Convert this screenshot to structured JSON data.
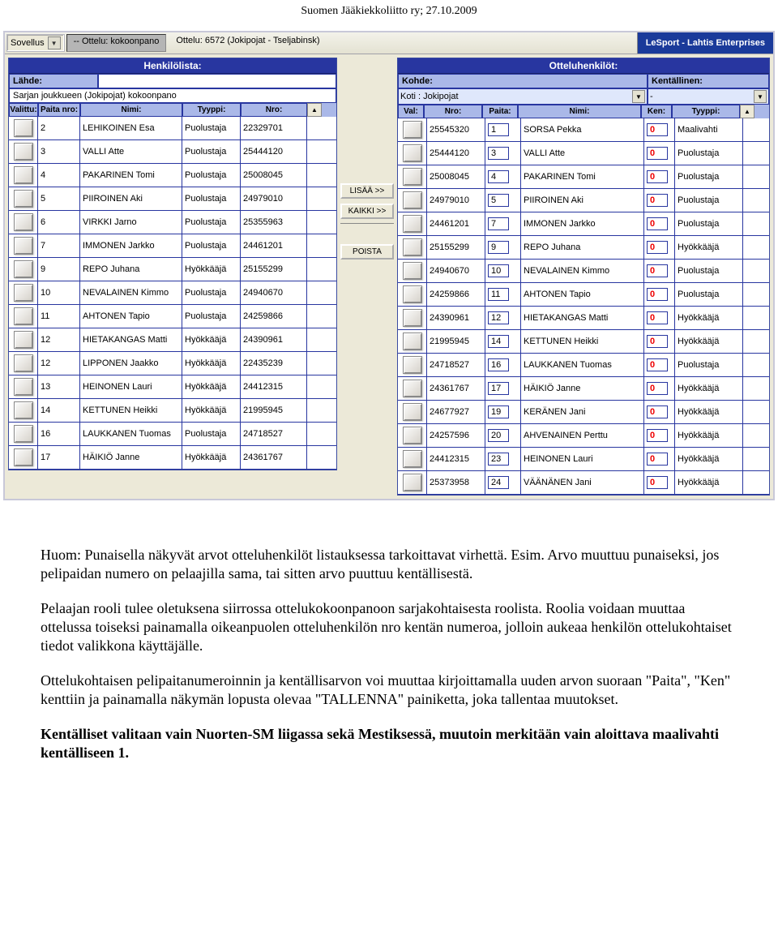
{
  "header": "Suomen Jääkiekkoliitto ry; 27.10.2009",
  "toolbar": {
    "dd_app_label": "Sovellus",
    "tab_label": "-- Ottelu: kokoonpano",
    "match_label": "Ottelu: 6572 (Jokipojat - Tseljabinsk)",
    "brand": "LeSport - Lahtis Enterprises"
  },
  "left_panel": {
    "title": "Henkilölista:",
    "sub_label": "Lähde:",
    "sub_value": "Sarjan joukkueen (Jokipojat) kokoonpano",
    "cols": {
      "val": "Valittu:",
      "paita": "Paita nro:",
      "nimi": "Nimi:",
      "tyyp": "Tyyppi:",
      "nro": "Nro:"
    },
    "rows": [
      {
        "paita": "2",
        "nimi": "LEHIKOINEN Esa",
        "tyyp": "Puolustaja",
        "nro": "22329701"
      },
      {
        "paita": "3",
        "nimi": "VALLI Atte",
        "tyyp": "Puolustaja",
        "nro": "25444120"
      },
      {
        "paita": "4",
        "nimi": "PAKARINEN Tomi",
        "tyyp": "Puolustaja",
        "nro": "25008045"
      },
      {
        "paita": "5",
        "nimi": "PIIROINEN Aki",
        "tyyp": "Puolustaja",
        "nro": "24979010"
      },
      {
        "paita": "6",
        "nimi": "VIRKKI Jarno",
        "tyyp": "Puolustaja",
        "nro": "25355963"
      },
      {
        "paita": "7",
        "nimi": "IMMONEN Jarkko",
        "tyyp": "Puolustaja",
        "nro": "24461201"
      },
      {
        "paita": "9",
        "nimi": "REPO Juhana",
        "tyyp": "Hyökkääjä",
        "nro": "25155299"
      },
      {
        "paita": "10",
        "nimi": "NEVALAINEN Kimmo",
        "tyyp": "Puolustaja",
        "nro": "24940670"
      },
      {
        "paita": "11",
        "nimi": "AHTONEN Tapio",
        "tyyp": "Puolustaja",
        "nro": "24259866"
      },
      {
        "paita": "12",
        "nimi": "HIETAKANGAS Matti",
        "tyyp": "Hyökkääjä",
        "nro": "24390961"
      },
      {
        "paita": "12",
        "nimi": "LIPPONEN Jaakko",
        "tyyp": "Hyökkääjä",
        "nro": "22435239"
      },
      {
        "paita": "13",
        "nimi": "HEINONEN Lauri",
        "tyyp": "Hyökkääjä",
        "nro": "24412315"
      },
      {
        "paita": "14",
        "nimi": "KETTUNEN Heikki",
        "tyyp": "Hyökkääjä",
        "nro": "21995945"
      },
      {
        "paita": "16",
        "nimi": "LAUKKANEN Tuomas",
        "tyyp": "Puolustaja",
        "nro": "24718527"
      },
      {
        "paita": "17",
        "nimi": "HÄIKIÖ Janne",
        "tyyp": "Hyökkääjä",
        "nro": "24361767"
      }
    ]
  },
  "mid": {
    "add": "LISÄÄ >>",
    "all": "KAIKKI >>",
    "remove": "POISTA"
  },
  "right_panel": {
    "title": "Otteluhenkilöt:",
    "kohde_label": "Kohde:",
    "kohde_value": "Koti : Jokipojat",
    "kent_label": "Kentällinen:",
    "kent_value": "-",
    "cols": {
      "val": "Val:",
      "nro": "Nro:",
      "paita": "Paita:",
      "nimi": "Nimi:",
      "ken": "Ken:",
      "tyyp": "Tyyppi:"
    },
    "rows": [
      {
        "nro": "25545320",
        "paita": "1",
        "nimi": "SORSA Pekka",
        "ken": "0",
        "tyyp": "Maalivahti"
      },
      {
        "nro": "25444120",
        "paita": "3",
        "nimi": "VALLI Atte",
        "ken": "0",
        "tyyp": "Puolustaja"
      },
      {
        "nro": "25008045",
        "paita": "4",
        "nimi": "PAKARINEN Tomi",
        "ken": "0",
        "tyyp": "Puolustaja"
      },
      {
        "nro": "24979010",
        "paita": "5",
        "nimi": "PIIROINEN Aki",
        "ken": "0",
        "tyyp": "Puolustaja"
      },
      {
        "nro": "24461201",
        "paita": "7",
        "nimi": "IMMONEN Jarkko",
        "ken": "0",
        "tyyp": "Puolustaja"
      },
      {
        "nro": "25155299",
        "paita": "9",
        "nimi": "REPO Juhana",
        "ken": "0",
        "tyyp": "Hyökkääjä"
      },
      {
        "nro": "24940670",
        "paita": "10",
        "nimi": "NEVALAINEN Kimmo",
        "ken": "0",
        "tyyp": "Puolustaja"
      },
      {
        "nro": "24259866",
        "paita": "11",
        "nimi": "AHTONEN Tapio",
        "ken": "0",
        "tyyp": "Puolustaja"
      },
      {
        "nro": "24390961",
        "paita": "12",
        "nimi": "HIETAKANGAS Matti",
        "ken": "0",
        "tyyp": "Hyökkääjä"
      },
      {
        "nro": "21995945",
        "paita": "14",
        "nimi": "KETTUNEN Heikki",
        "ken": "0",
        "tyyp": "Hyökkääjä"
      },
      {
        "nro": "24718527",
        "paita": "16",
        "nimi": "LAUKKANEN Tuomas",
        "ken": "0",
        "tyyp": "Puolustaja"
      },
      {
        "nro": "24361767",
        "paita": "17",
        "nimi": "HÄIKIÖ Janne",
        "ken": "0",
        "tyyp": "Hyökkääjä"
      },
      {
        "nro": "24677927",
        "paita": "19",
        "nimi": "KERÄNEN Jani",
        "ken": "0",
        "tyyp": "Hyökkääjä"
      },
      {
        "nro": "24257596",
        "paita": "20",
        "nimi": "AHVENAINEN Perttu",
        "ken": "0",
        "tyyp": "Hyökkääjä"
      },
      {
        "nro": "24412315",
        "paita": "23",
        "nimi": "HEINONEN Lauri",
        "ken": "0",
        "tyyp": "Hyökkääjä"
      },
      {
        "nro": "25373958",
        "paita": "24",
        "nimi": "VÄÄNÄNEN Jani",
        "ken": "0",
        "tyyp": "Hyökkääjä"
      }
    ]
  },
  "body": {
    "p1": "Huom: Punaisella näkyvät arvot otteluhenkilöt listauksessa tarkoittavat virhettä. Esim. Arvo muuttuu punaiseksi, jos pelipaidan numero on pelaajilla sama, tai sitten arvo puuttuu kentällisestä.",
    "p2": "Pelaajan rooli tulee oletuksena siirrossa ottelukokoonpanoon sarjakohtaisesta roolista. Roolia voidaan muuttaa ottelussa toiseksi painamalla oikeanpuolen otteluhenkilön nro kentän numeroa, jolloin aukeaa henkilön ottelukohtaiset tiedot valikkona käyttäjälle.",
    "p3": "Ottelukohtaisen pelipaitanumeroinnin ja kentällisarvon voi muuttaa kirjoittamalla uuden arvon suoraan \"Paita\", \"Ken\" kenttiin ja painamalla näkymän lopusta olevaa \"TALLENNA\" painiketta, joka tallentaa muutokset.",
    "p4": "Kentälliset valitaan vain Nuorten-SM liigassa sekä Mestiksessä, muutoin merkitään vain aloittava maalivahti kentälliseen 1."
  }
}
